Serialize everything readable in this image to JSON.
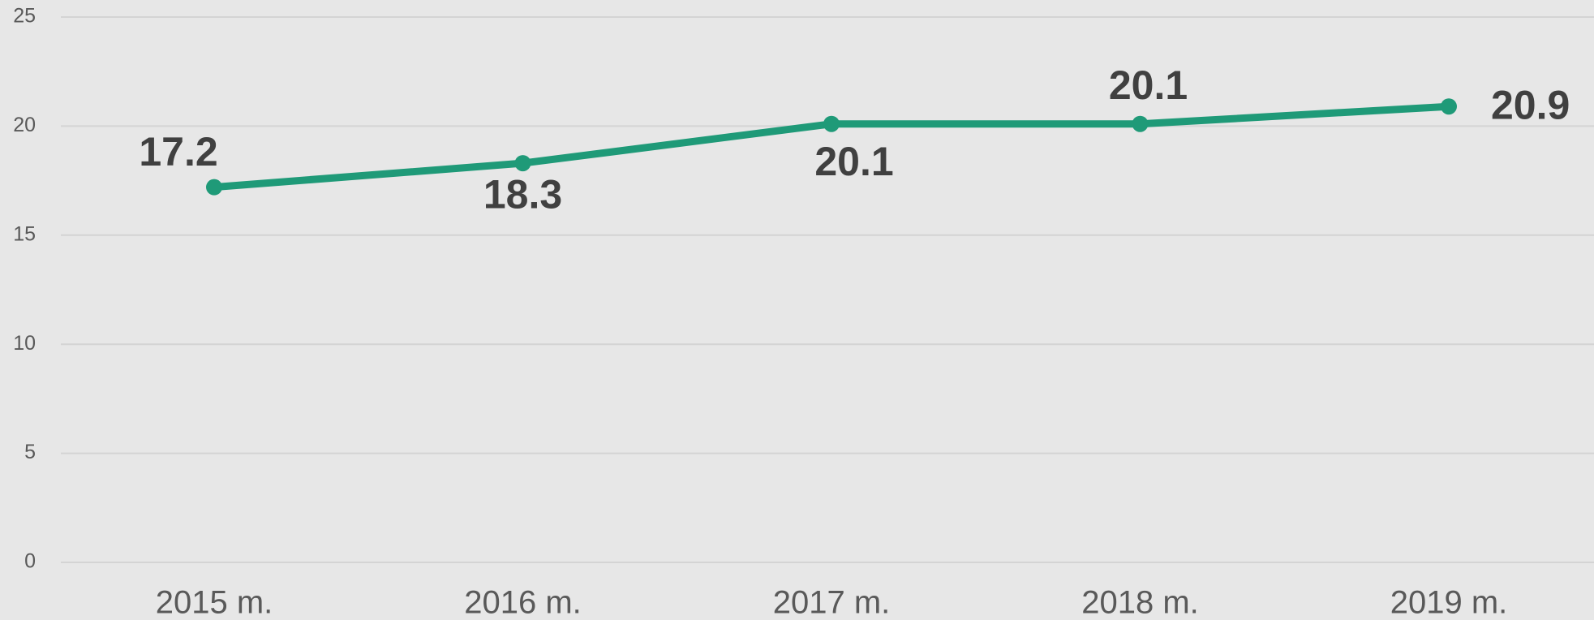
{
  "chart_data": {
    "type": "line",
    "categories": [
      "2015 m.",
      "2016 m.",
      "2017 m.",
      "2018 m.",
      "2019 m."
    ],
    "series": [
      {
        "name": null,
        "color": "#1f9a78",
        "values": [
          17.2,
          18.3,
          20.1,
          20.1,
          20.9
        ]
      }
    ],
    "ylim": [
      0,
      25
    ],
    "yticks": [
      0,
      5,
      10,
      15,
      20,
      25
    ],
    "grid": true
  }
}
